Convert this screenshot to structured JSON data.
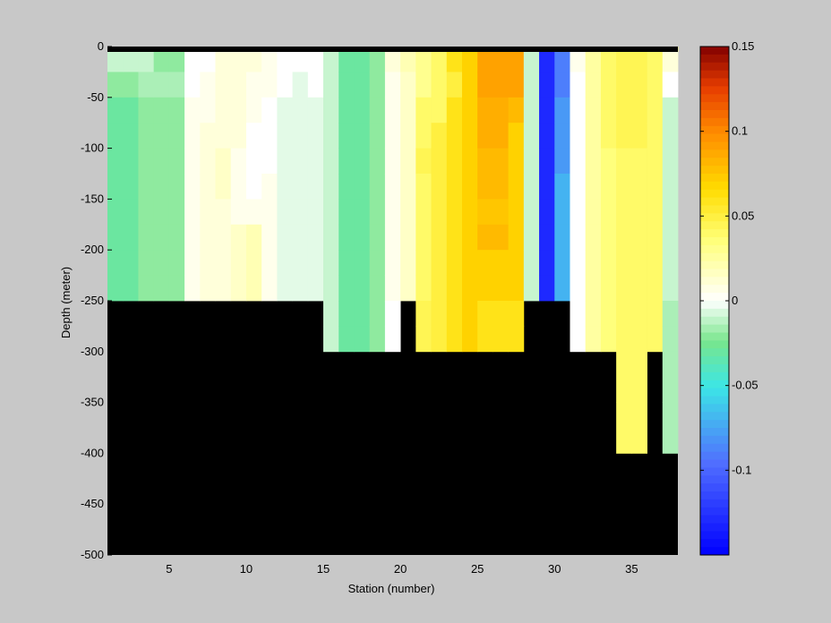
{
  "chart_data": {
    "type": "heatmap",
    "xlabel": "Station (number)",
    "ylabel": "Depth (meter)",
    "xlim": [
      1,
      38
    ],
    "ylim": [
      -500,
      0
    ],
    "xticks": [
      5,
      10,
      15,
      20,
      25,
      30,
      35
    ],
    "yticks": [
      0,
      -50,
      -100,
      -150,
      -200,
      -250,
      -300,
      -350,
      -400,
      -450,
      -500
    ],
    "colorbar": {
      "range": [
        -0.15,
        0.15
      ],
      "ticks": [
        0.15,
        0.1,
        0.05,
        0,
        -0.05,
        -0.1
      ],
      "tick_labels": [
        "0.15",
        "0.1",
        "0.05",
        "0",
        "-0.05",
        "-0.1"
      ],
      "colormap": "blue-cyan-green-white-yellow-orange-darkred"
    },
    "depth_bands": [
      "0-5",
      "5-25",
      "25-50",
      "50-75",
      "75-100",
      "100-125",
      "125-150",
      "150-175",
      "175-200",
      "200-225",
      "225-250",
      "250-275",
      "275-300",
      "300-350",
      "350-400"
    ],
    "stations": [
      {
        "station": 1,
        "values": [
          0.0,
          -0.01,
          -0.02,
          -0.03,
          -0.03,
          -0.03,
          -0.03,
          -0.03,
          -0.03,
          -0.03,
          -0.03
        ]
      },
      {
        "station": 2,
        "values": [
          0.0,
          -0.01,
          -0.02,
          -0.03,
          -0.03,
          -0.03,
          -0.03,
          -0.03,
          -0.03,
          -0.03,
          -0.03
        ]
      },
      {
        "station": 3,
        "values": [
          -0.01,
          -0.01,
          -0.015,
          -0.02,
          -0.02,
          -0.02,
          -0.02,
          -0.02,
          -0.02,
          -0.02,
          -0.02
        ]
      },
      {
        "station": 4,
        "values": [
          -0.02,
          -0.02,
          -0.015,
          -0.02,
          -0.02,
          -0.02,
          -0.02,
          -0.02,
          -0.02,
          -0.02,
          -0.02
        ]
      },
      {
        "station": 5,
        "values": [
          -0.02,
          -0.02,
          -0.015,
          -0.02,
          -0.02,
          -0.02,
          -0.02,
          -0.02,
          -0.02,
          -0.02,
          -0.02
        ]
      },
      {
        "station": 6,
        "values": [
          0.0,
          0.0,
          0.0,
          0.005,
          0.005,
          0.005,
          0.005,
          0.005,
          0.005,
          0.005,
          0.005
        ]
      },
      {
        "station": 7,
        "values": [
          0.0,
          0.0,
          0.005,
          0.005,
          0.01,
          0.01,
          0.01,
          0.01,
          0.01,
          0.01,
          0.01
        ]
      },
      {
        "station": 8,
        "values": [
          0.005,
          0.01,
          0.01,
          0.01,
          0.01,
          0.015,
          0.015,
          0.01,
          0.01,
          0.01,
          0.01
        ]
      },
      {
        "station": 9,
        "values": [
          0.01,
          0.01,
          0.01,
          0.01,
          0.01,
          0.005,
          0.005,
          0.005,
          0.015,
          0.015,
          0.015
        ]
      },
      {
        "station": 10,
        "values": [
          0.01,
          0.01,
          0.005,
          0.005,
          0.0,
          0.0,
          0.0,
          0.005,
          0.02,
          0.02,
          0.02
        ]
      },
      {
        "station": 11,
        "values": [
          0.02,
          0.005,
          0.005,
          0.0,
          0.0,
          0.0,
          0.005,
          0.005,
          0.005,
          0.005,
          0.005
        ]
      },
      {
        "station": 12,
        "values": [
          0.005,
          0.0,
          0.0,
          -0.005,
          -0.005,
          -0.005,
          -0.005,
          -0.005,
          -0.005,
          -0.005,
          -0.005
        ]
      },
      {
        "station": 13,
        "values": [
          0.0,
          0.0,
          -0.005,
          -0.005,
          -0.005,
          -0.005,
          -0.005,
          -0.005,
          -0.005,
          -0.005,
          -0.005
        ]
      },
      {
        "station": 14,
        "values": [
          0.0,
          0.0,
          0.0,
          -0.005,
          -0.005,
          -0.005,
          -0.005,
          -0.005,
          -0.005,
          -0.005,
          -0.005
        ]
      },
      {
        "station": 15,
        "values": [
          0.0,
          -0.01,
          -0.01,
          -0.01,
          -0.01,
          -0.01,
          -0.01,
          -0.01,
          -0.01,
          -0.01,
          -0.01,
          -0.01,
          -0.01
        ]
      },
      {
        "station": 16,
        "values": [
          -0.02,
          -0.03,
          -0.03,
          -0.03,
          -0.03,
          -0.03,
          -0.03,
          -0.03,
          -0.03,
          -0.03,
          -0.03,
          -0.03,
          -0.03
        ]
      },
      {
        "station": 17,
        "values": [
          -0.02,
          -0.03,
          -0.03,
          -0.03,
          -0.03,
          -0.03,
          -0.03,
          -0.03,
          -0.03,
          -0.03,
          -0.03,
          -0.03,
          -0.03
        ]
      },
      {
        "station": 18,
        "values": [
          -0.01,
          -0.02,
          -0.02,
          -0.02,
          -0.02,
          -0.02,
          -0.02,
          -0.02,
          -0.02,
          -0.02,
          -0.02,
          -0.02,
          -0.02
        ]
      },
      {
        "station": 19,
        "values": [
          0.03,
          0.01,
          0.005,
          0.005,
          0.005,
          0.005,
          0.005,
          0.005,
          0.005,
          0.005,
          0.005,
          0.0,
          0.0
        ]
      },
      {
        "station": 20,
        "values": [
          0.04,
          0.02,
          0.015,
          0.015,
          0.015,
          0.015,
          0.015,
          0.015,
          0.015,
          0.015,
          0.015
        ]
      },
      {
        "station": 21,
        "values": [
          0.05,
          0.03,
          0.03,
          0.04,
          0.04,
          0.045,
          0.04,
          0.04,
          0.04,
          0.04,
          0.04,
          0.045,
          0.045
        ]
      },
      {
        "station": 22,
        "values": [
          0.06,
          0.04,
          0.04,
          0.04,
          0.05,
          0.05,
          0.05,
          0.05,
          0.05,
          0.05,
          0.05,
          0.05,
          0.05
        ]
      },
      {
        "station": 23,
        "values": [
          0.07,
          0.06,
          0.05,
          0.06,
          0.06,
          0.06,
          0.06,
          0.06,
          0.06,
          0.06,
          0.06,
          0.06,
          0.06
        ]
      },
      {
        "station": 24,
        "values": [
          0.09,
          0.07,
          0.07,
          0.07,
          0.07,
          0.07,
          0.07,
          0.07,
          0.07,
          0.07,
          0.07,
          0.07,
          0.07
        ]
      },
      {
        "station": 25,
        "values": [
          0.11,
          0.09,
          0.09,
          0.085,
          0.085,
          0.08,
          0.08,
          0.075,
          0.08,
          0.07,
          0.07,
          0.06,
          0.06
        ]
      },
      {
        "station": 26,
        "values": [
          0.11,
          0.09,
          0.09,
          0.085,
          0.085,
          0.08,
          0.08,
          0.075,
          0.08,
          0.07,
          0.07,
          0.06,
          0.06
        ]
      },
      {
        "station": 27,
        "values": [
          0.11,
          0.09,
          0.09,
          0.08,
          0.07,
          0.07,
          0.07,
          0.07,
          0.07,
          0.07,
          0.07,
          0.06,
          0.06
        ]
      },
      {
        "station": 28,
        "values": [
          0.0,
          -0.01,
          -0.01,
          -0.01,
          -0.01,
          -0.01,
          -0.01,
          -0.01,
          -0.01,
          -0.01,
          -0.01
        ]
      },
      {
        "station": 29,
        "values": [
          -0.1,
          -0.13,
          -0.13,
          -0.13,
          -0.13,
          -0.13,
          -0.13,
          -0.13,
          -0.13,
          -0.13,
          -0.13
        ]
      },
      {
        "station": 30,
        "values": [
          -0.06,
          -0.09,
          -0.09,
          -0.08,
          -0.08,
          -0.08,
          -0.07,
          -0.07,
          -0.07,
          -0.07,
          -0.07
        ]
      },
      {
        "station": 31,
        "values": [
          0.01,
          0.005,
          0.0,
          0.0,
          0.0,
          0.0,
          0.0,
          0.0,
          0.0,
          0.0,
          0.0,
          0.0,
          0.0
        ]
      },
      {
        "station": 32,
        "values": [
          0.04,
          0.025,
          0.025,
          0.025,
          0.025,
          0.025,
          0.025,
          0.025,
          0.025,
          0.025,
          0.025,
          0.025,
          0.025
        ]
      },
      {
        "station": 33,
        "values": [
          0.055,
          0.04,
          0.04,
          0.04,
          0.04,
          0.035,
          0.035,
          0.035,
          0.035,
          0.035,
          0.035,
          0.035,
          0.035
        ]
      },
      {
        "station": 34,
        "values": [
          0.06,
          0.045,
          0.045,
          0.045,
          0.045,
          0.04,
          0.04,
          0.04,
          0.04,
          0.04,
          0.04,
          0.04,
          0.04,
          0.04,
          0.04
        ]
      },
      {
        "station": 35,
        "values": [
          0.06,
          0.045,
          0.045,
          0.045,
          0.045,
          0.04,
          0.04,
          0.04,
          0.04,
          0.04,
          0.04,
          0.04,
          0.04,
          0.04,
          0.04
        ]
      },
      {
        "station": 36,
        "values": [
          0.06,
          0.04,
          0.04,
          0.04,
          0.04,
          0.04,
          0.04,
          0.04,
          0.04,
          0.04,
          0.04,
          0.04,
          0.04
        ]
      },
      {
        "station": 37,
        "values": [
          0.04,
          0.01,
          0.0,
          -0.01,
          -0.01,
          -0.01,
          -0.01,
          -0.01,
          -0.01,
          -0.01,
          -0.01,
          -0.015,
          -0.015,
          -0.015,
          -0.015
        ]
      }
    ],
    "missing_value_color": "#000000"
  }
}
